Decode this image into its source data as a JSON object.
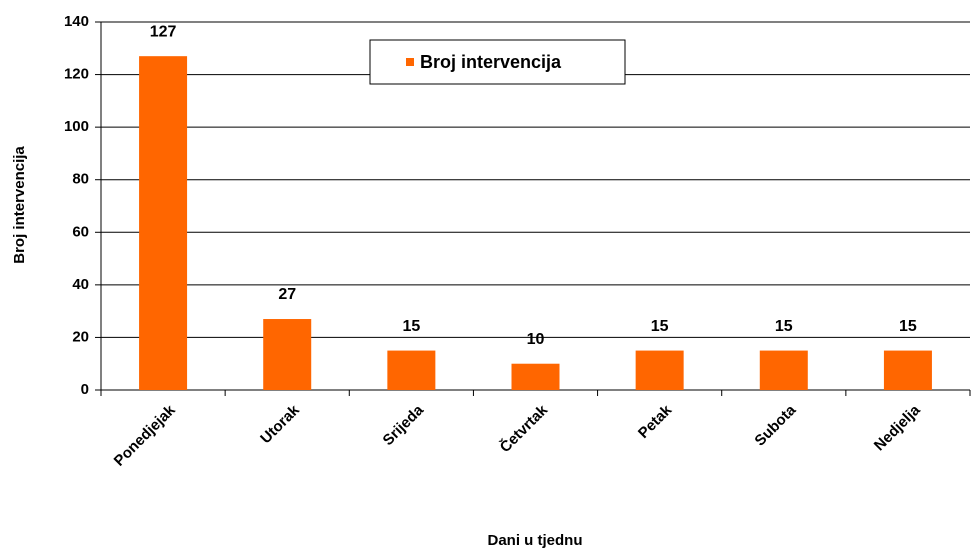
{
  "chart_data": {
    "type": "bar",
    "x_label": "Dani u tjednu",
    "y_label": "Broj intervencija",
    "categories": [
      "Ponedjejak",
      "Utorak",
      "Srijeda",
      "Četvrtak",
      "Petak",
      "Subota",
      "Nedjelja"
    ],
    "series": [
      {
        "name": "Broj intervencija",
        "color": "#ff6600",
        "values": [
          127,
          27,
          15,
          10,
          15,
          15,
          15
        ]
      }
    ],
    "ylim": [
      0,
      140
    ],
    "yticks": [
      0,
      20,
      40,
      60,
      80,
      100,
      120,
      140
    ],
    "grid": true,
    "legend": "top"
  }
}
